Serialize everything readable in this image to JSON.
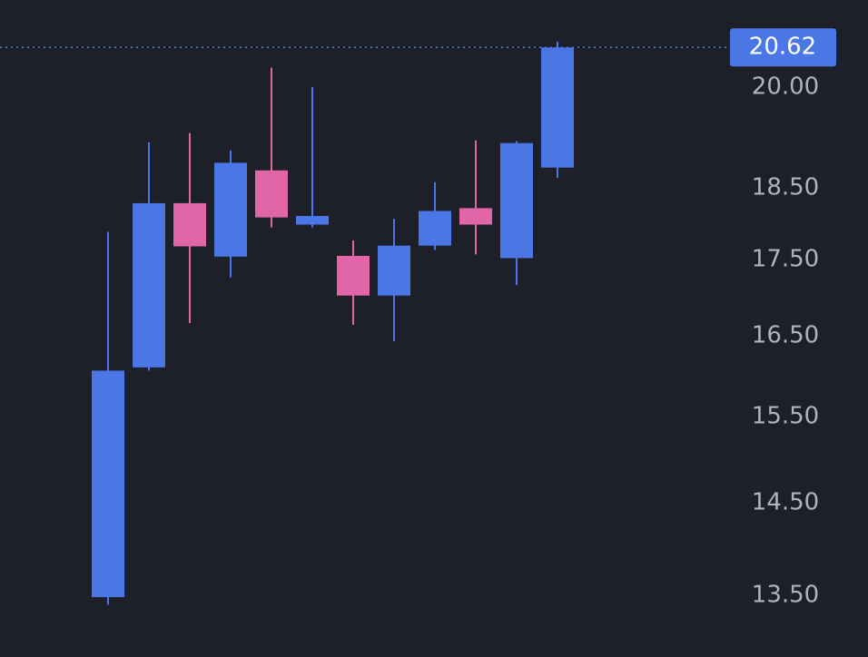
{
  "chart_data": {
    "type": "candlestick",
    "categories": [
      null,
      null,
      null,
      null,
      null,
      null,
      null,
      null,
      null,
      null,
      null,
      null
    ],
    "open": [
      13.48,
      16.1,
      18.28,
      17.54,
      18.75,
      17.98,
      17.55,
      17.02,
      17.69,
      18.21,
      17.52,
      18.79
    ],
    "high": [
      17.88,
      19.16,
      19.3,
      19.04,
      20.3,
      20.0,
      17.76,
      18.06,
      18.58,
      19.19,
      19.18,
      20.71
    ],
    "low": [
      13.4,
      16.06,
      16.66,
      17.26,
      17.94,
      17.94,
      16.64,
      16.43,
      17.63,
      17.57,
      17.16,
      18.64
    ],
    "close": [
      16.06,
      18.28,
      17.68,
      18.86,
      18.08,
      18.1,
      17.02,
      17.69,
      18.17,
      17.98,
      19.15,
      20.62
    ],
    "up_color": "#4a76e6",
    "down_color": "#e066a8",
    "log_scale": true,
    "ylim": [
      12.87,
      21.39
    ],
    "yticks": [
      {
        "value": 13.5,
        "label": "13.50"
      },
      {
        "value": 14.5,
        "label": "14.50"
      },
      {
        "value": 15.5,
        "label": "15.50"
      },
      {
        "value": 16.5,
        "label": "16.50"
      },
      {
        "value": 17.5,
        "label": "17.50"
      },
      {
        "value": 18.5,
        "label": "18.50"
      },
      {
        "value": 20,
        "label": "20.00"
      }
    ],
    "last_price": 20.62,
    "last_price_color": "#4a76e6"
  }
}
